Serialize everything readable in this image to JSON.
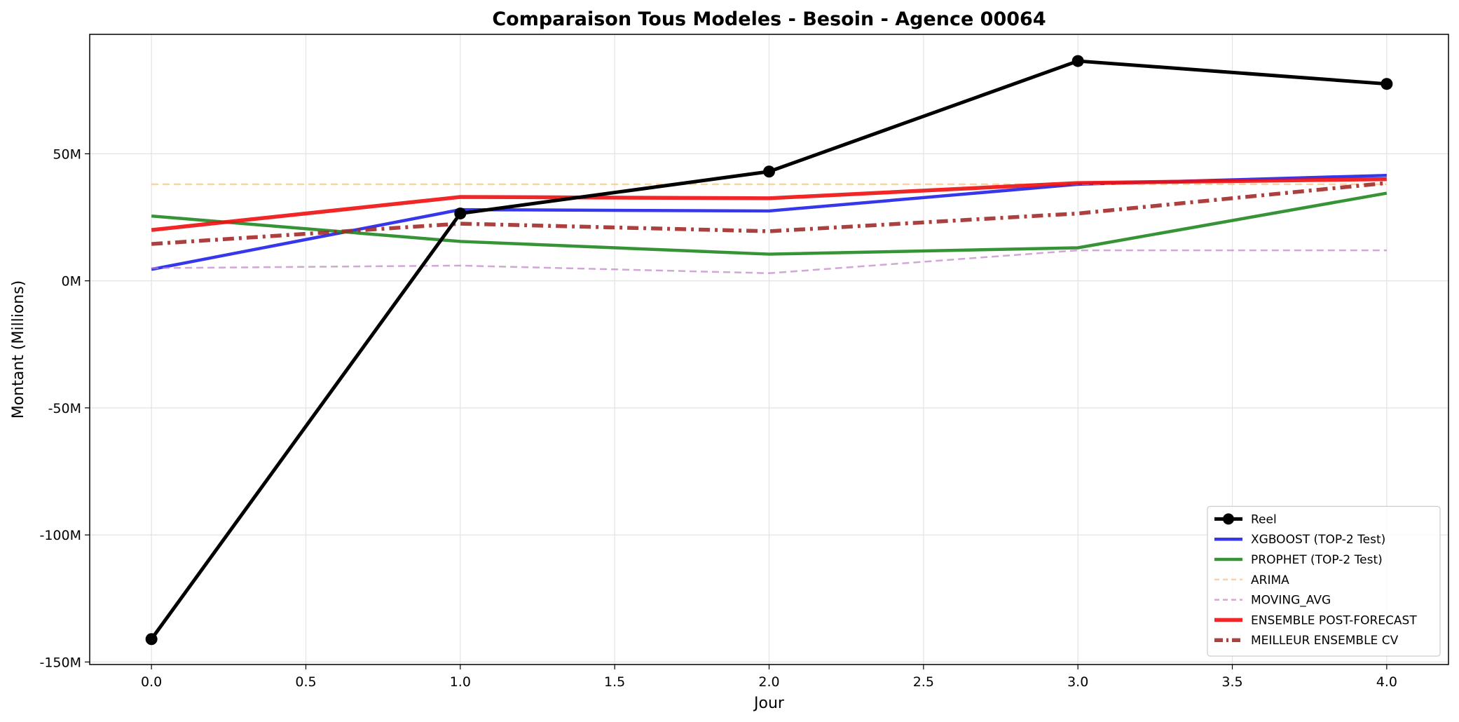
{
  "chart_data": {
    "type": "line",
    "title": "Comparaison Tous Modeles - Besoin - Agence 00064",
    "xlabel": "Jour",
    "ylabel": "Montant (Millions)",
    "xlim": [
      -0.2,
      4.2
    ],
    "ylim": [
      -151,
      97
    ],
    "x_ticks": [
      0.0,
      0.5,
      1.0,
      1.5,
      2.0,
      2.5,
      3.0,
      3.5,
      4.0
    ],
    "x_tick_labels": [
      "0.0",
      "0.5",
      "1.0",
      "1.5",
      "2.0",
      "2.5",
      "3.0",
      "3.5",
      "4.0"
    ],
    "y_ticks": [
      50,
      0,
      -50,
      -100,
      -150
    ],
    "y_tick_labels": [
      "50M",
      "0M",
      "-50M",
      "-100M",
      "-150M"
    ],
    "grid": true,
    "legend_position": "bottom-right",
    "x": [
      0,
      1,
      2,
      3,
      4
    ],
    "series": [
      {
        "name": "Reel",
        "values": [
          -141,
          26.5,
          43,
          86.5,
          77.5
        ],
        "color": "#000000",
        "dash": "solid",
        "marker": "circle",
        "emphasis": "bold"
      },
      {
        "name": "XGBOOST (TOP-2 Test)",
        "values": [
          4.5,
          28,
          27.5,
          38,
          41.5
        ],
        "color": "#2020e8",
        "dash": "solid",
        "marker": "none",
        "emphasis": "normal"
      },
      {
        "name": "PROPHET (TOP-2 Test)",
        "values": [
          25.5,
          15.5,
          10.5,
          13,
          34.5
        ],
        "color": "#208820",
        "dash": "solid",
        "marker": "none",
        "emphasis": "normal"
      },
      {
        "name": "ARIMA",
        "values": [
          38,
          38,
          38,
          38,
          38
        ],
        "color": "#ffbf70",
        "dash": "dashed",
        "marker": "none",
        "emphasis": "light"
      },
      {
        "name": "MOVING_AVG",
        "values": [
          5,
          6,
          3,
          12,
          12
        ],
        "color": "#c080c8",
        "dash": "dashed",
        "marker": "none",
        "emphasis": "light"
      },
      {
        "name": "ENSEMBLE POST-FORECAST",
        "values": [
          20,
          33,
          32.5,
          38.5,
          40
        ],
        "color": "#f01010",
        "dash": "solid",
        "marker": "none",
        "emphasis": "bold"
      },
      {
        "name": "MEILLEUR ENSEMBLE CV",
        "values": [
          14.5,
          22.5,
          19.5,
          26.5,
          38.5
        ],
        "color": "#a52a2a",
        "dash": "dashdot",
        "marker": "none",
        "emphasis": "bold"
      }
    ]
  }
}
